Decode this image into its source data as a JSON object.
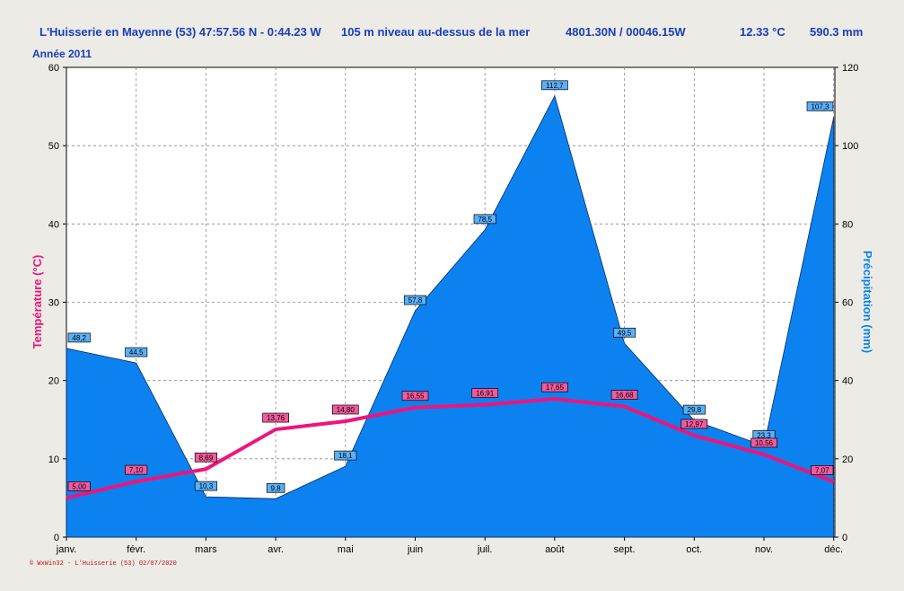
{
  "header": {
    "station": "L'Huisserie en Mayenne (53) 47:57.56 N - 0:44.23 W",
    "altitude": "105 m niveau au-dessus de la mer",
    "coords": "4801.30N / 00046.15W",
    "temp_mean": "12.33 °C",
    "precip_total": "590.3 mm",
    "year": "Année  2011"
  },
  "footer": "© WxWin32 - L'Huisserie (53)  02/07/2020",
  "colors": {
    "precip_fill": "#0b82f0",
    "temp_line": "#f0147a",
    "title": "#1a3dbb",
    "background": "#ecebe6"
  },
  "chart_data": {
    "type": "area",
    "categories": [
      "janv.",
      "févr.",
      "mars",
      "avr.",
      "mai",
      "juin",
      "juil.",
      "août",
      "sept.",
      "oct.",
      "nov.",
      "déc."
    ],
    "ylabel_left": "Température  (°C)",
    "ylabel_right": "Précipitation  (mm)",
    "ylim_left": [
      0,
      60
    ],
    "ylim_right": [
      0,
      120
    ],
    "yticks_left": [
      "0",
      "10",
      "20",
      "30",
      "40",
      "50",
      "60"
    ],
    "yticks_right": [
      "0",
      "20",
      "40",
      "60",
      "80",
      "100",
      "120"
    ],
    "grid": true,
    "series": [
      {
        "axis": "right",
        "kind": "area",
        "values": [
          48.2,
          44.5,
          10.3,
          9.8,
          18.1,
          57.8,
          78.5,
          112.7,
          49.5,
          29.8,
          23.3,
          107.3
        ],
        "labels": [
          "48,2",
          "44,5",
          "10,3",
          "9,8",
          "18,1",
          "57,8",
          "78,5",
          "112,7",
          "49,5",
          "29,8",
          "23,3",
          "107,3"
        ]
      },
      {
        "axis": "left",
        "kind": "line",
        "values": [
          5.0,
          7.1,
          8.69,
          13.76,
          14.8,
          16.55,
          16.91,
          17.65,
          16.68,
          12.97,
          10.56,
          7.07
        ],
        "labels": [
          "5,00",
          "7,10",
          "8,69",
          "13,76",
          "14,80",
          "16,55",
          "16,91",
          "17,65",
          "16,68",
          "12,97",
          "10,56",
          "7,07"
        ]
      }
    ]
  }
}
